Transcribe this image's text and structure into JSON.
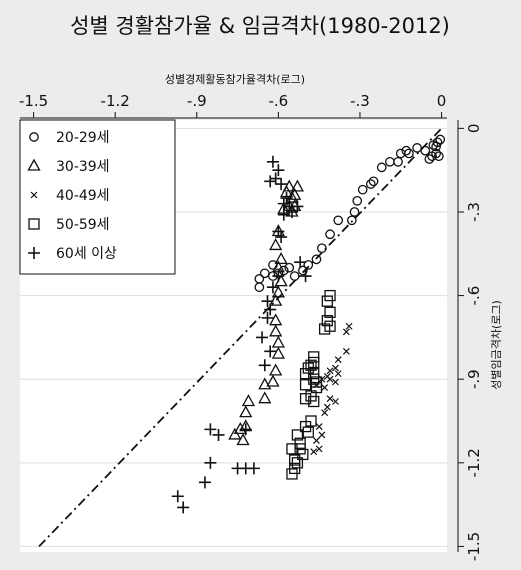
{
  "chart_data": {
    "type": "scatter",
    "title": "성별 경활참가율 & 임금격차(1980-2012)",
    "xlabel": "성별경제활동참가율격차(로그)",
    "ylabel": "성별임금격차(로그)",
    "xlim": [
      -1.55,
      0.02
    ],
    "ylim": [
      -1.52,
      0.03
    ],
    "x_ticks": [
      -1.5,
      -1.2,
      -0.9,
      -0.6,
      -0.3,
      0
    ],
    "x_tick_labels": [
      "-1.5",
      "-1.2",
      "-.9",
      "-.6",
      "-.3",
      "0"
    ],
    "y_ticks": [
      0,
      -0.3,
      -0.6,
      -0.9,
      -1.2,
      -1.5
    ],
    "y_tick_labels": [
      "0",
      "-.3",
      "-.6",
      "-.9",
      "-1.2",
      "-1.5"
    ],
    "x_axis_position": "top",
    "y_axis_position": "right",
    "grid": true,
    "legend_position": "top-left",
    "reference_line": {
      "style": "dash-dot",
      "points": [
        [
          -1.48,
          -1.5
        ],
        [
          0,
          0
        ]
      ]
    },
    "series": [
      {
        "name": "20-29세",
        "marker": "circle",
        "points": [
          [
            -0.005,
            -0.04
          ],
          [
            -0.015,
            -0.05
          ],
          [
            -0.02,
            -0.065
          ],
          [
            -0.03,
            -0.06
          ],
          [
            -0.02,
            -0.09
          ],
          [
            -0.035,
            -0.1
          ],
          [
            -0.01,
            -0.1
          ],
          [
            -0.045,
            -0.11
          ],
          [
            -0.06,
            -0.08
          ],
          [
            -0.09,
            -0.07
          ],
          [
            -0.12,
            -0.09
          ],
          [
            -0.13,
            -0.08
          ],
          [
            -0.15,
            -0.09
          ],
          [
            -0.16,
            -0.12
          ],
          [
            -0.19,
            -0.12
          ],
          [
            -0.22,
            -0.14
          ],
          [
            -0.25,
            -0.19
          ],
          [
            -0.26,
            -0.2
          ],
          [
            -0.29,
            -0.22
          ],
          [
            -0.31,
            -0.26
          ],
          [
            -0.32,
            -0.3
          ],
          [
            -0.33,
            -0.33
          ],
          [
            -0.38,
            -0.33
          ],
          [
            -0.41,
            -0.38
          ],
          [
            -0.44,
            -0.43
          ],
          [
            -0.46,
            -0.47
          ],
          [
            -0.49,
            -0.49
          ],
          [
            -0.51,
            -0.51
          ],
          [
            -0.54,
            -0.53
          ],
          [
            -0.56,
            -0.5
          ],
          [
            -0.58,
            -0.51
          ],
          [
            -0.6,
            -0.52
          ],
          [
            -0.62,
            -0.53
          ],
          [
            -0.65,
            -0.52
          ],
          [
            -0.67,
            -0.54
          ],
          [
            -0.67,
            -0.57
          ],
          [
            -0.62,
            -0.49
          ]
        ]
      },
      {
        "name": "30-39세",
        "marker": "triangle",
        "points": [
          [
            -0.53,
            -0.21
          ],
          [
            -0.56,
            -0.21
          ],
          [
            -0.55,
            -0.25
          ],
          [
            -0.57,
            -0.23
          ],
          [
            -0.54,
            -0.24
          ],
          [
            -0.56,
            -0.28
          ],
          [
            -0.54,
            -0.28
          ],
          [
            -0.58,
            -0.29
          ],
          [
            -0.55,
            -0.3
          ],
          [
            -0.6,
            -0.37
          ],
          [
            -0.61,
            -0.42
          ],
          [
            -0.59,
            -0.47
          ],
          [
            -0.6,
            -0.5
          ],
          [
            -0.59,
            -0.55
          ],
          [
            -0.6,
            -0.59
          ],
          [
            -0.61,
            -0.62
          ],
          [
            -0.61,
            -0.69
          ],
          [
            -0.61,
            -0.73
          ],
          [
            -0.6,
            -0.77
          ],
          [
            -0.6,
            -0.81
          ],
          [
            -0.61,
            -0.87
          ],
          [
            -0.62,
            -0.91
          ],
          [
            -0.65,
            -0.92
          ],
          [
            -0.65,
            -0.97
          ],
          [
            -0.71,
            -0.98
          ],
          [
            -0.72,
            -1.02
          ],
          [
            -0.72,
            -1.07
          ],
          [
            -0.74,
            -1.08
          ],
          [
            -0.76,
            -1.1
          ],
          [
            -0.73,
            -1.12
          ]
        ]
      },
      {
        "name": "40-49세",
        "marker": "x",
        "points": [
          [
            -0.34,
            -0.71
          ],
          [
            -0.35,
            -0.73
          ],
          [
            -0.35,
            -0.8
          ],
          [
            -0.38,
            -0.83
          ],
          [
            -0.39,
            -0.86
          ],
          [
            -0.41,
            -0.87
          ],
          [
            -0.42,
            -0.89
          ],
          [
            -0.38,
            -0.88
          ],
          [
            -0.39,
            -0.91
          ],
          [
            -0.41,
            -0.9
          ],
          [
            -0.43,
            -0.93
          ],
          [
            -0.46,
            -0.92
          ],
          [
            -0.44,
            -0.9
          ],
          [
            -0.41,
            -0.97
          ],
          [
            -0.39,
            -0.98
          ],
          [
            -0.42,
            -1.0
          ],
          [
            -0.43,
            -1.02
          ],
          [
            -0.45,
            -1.07
          ],
          [
            -0.44,
            -1.1
          ],
          [
            -0.46,
            -1.12
          ],
          [
            -0.47,
            -1.16
          ],
          [
            -0.45,
            -1.15
          ]
        ]
      },
      {
        "name": "50-59세",
        "marker": "square",
        "points": [
          [
            -0.41,
            -0.6
          ],
          [
            -0.42,
            -0.62
          ],
          [
            -0.41,
            -0.66
          ],
          [
            -0.42,
            -0.69
          ],
          [
            -0.41,
            -0.71
          ],
          [
            -0.43,
            -0.72
          ],
          [
            -0.47,
            -0.82
          ],
          [
            -0.47,
            -0.84
          ],
          [
            -0.48,
            -0.85
          ],
          [
            -0.49,
            -0.86
          ],
          [
            -0.47,
            -0.88
          ],
          [
            -0.5,
            -0.88
          ],
          [
            -0.47,
            -0.9
          ],
          [
            -0.46,
            -0.91
          ],
          [
            -0.46,
            -0.93
          ],
          [
            -0.5,
            -0.92
          ],
          [
            -0.48,
            -0.96
          ],
          [
            -0.5,
            -0.97
          ],
          [
            -0.47,
            -0.98
          ],
          [
            -0.48,
            -1.05
          ],
          [
            -0.5,
            -1.07
          ],
          [
            -0.49,
            -1.09
          ],
          [
            -0.53,
            -1.1
          ],
          [
            -0.52,
            -1.13
          ],
          [
            -0.52,
            -1.15
          ],
          [
            -0.55,
            -1.15
          ],
          [
            -0.51,
            -1.17
          ],
          [
            -0.54,
            -1.19
          ],
          [
            -0.53,
            -1.2
          ],
          [
            -0.54,
            -1.22
          ],
          [
            -0.55,
            -1.24
          ]
        ]
      },
      {
        "name": "60세 이상",
        "marker": "plus",
        "points": [
          [
            -0.62,
            -0.12
          ],
          [
            -0.6,
            -0.15
          ],
          [
            -0.61,
            -0.18
          ],
          [
            -0.63,
            -0.19
          ],
          [
            -0.59,
            -0.2
          ],
          [
            -0.57,
            -0.25
          ],
          [
            -0.58,
            -0.27
          ],
          [
            -0.56,
            -0.28
          ],
          [
            -0.53,
            -0.28
          ],
          [
            -0.58,
            -0.31
          ],
          [
            -0.55,
            -0.3
          ],
          [
            -0.6,
            -0.37
          ],
          [
            -0.59,
            -0.39
          ],
          [
            -0.52,
            -0.48
          ],
          [
            -0.5,
            -0.53
          ],
          [
            -0.6,
            -0.53
          ],
          [
            -0.62,
            -0.57
          ],
          [
            -0.64,
            -0.62
          ],
          [
            -0.63,
            -0.65
          ],
          [
            -0.64,
            -0.68
          ],
          [
            -0.66,
            -0.75
          ],
          [
            -0.63,
            -0.8
          ],
          [
            -0.65,
            -0.85
          ],
          [
            -0.72,
            -1.08
          ],
          [
            -0.85,
            -1.08
          ],
          [
            -0.82,
            -1.1
          ],
          [
            -0.85,
            -1.2
          ],
          [
            -0.72,
            -1.22
          ],
          [
            -0.75,
            -1.22
          ],
          [
            -0.69,
            -1.22
          ],
          [
            -0.87,
            -1.27
          ],
          [
            -0.97,
            -1.32
          ],
          [
            -0.95,
            -1.36
          ]
        ]
      }
    ]
  }
}
